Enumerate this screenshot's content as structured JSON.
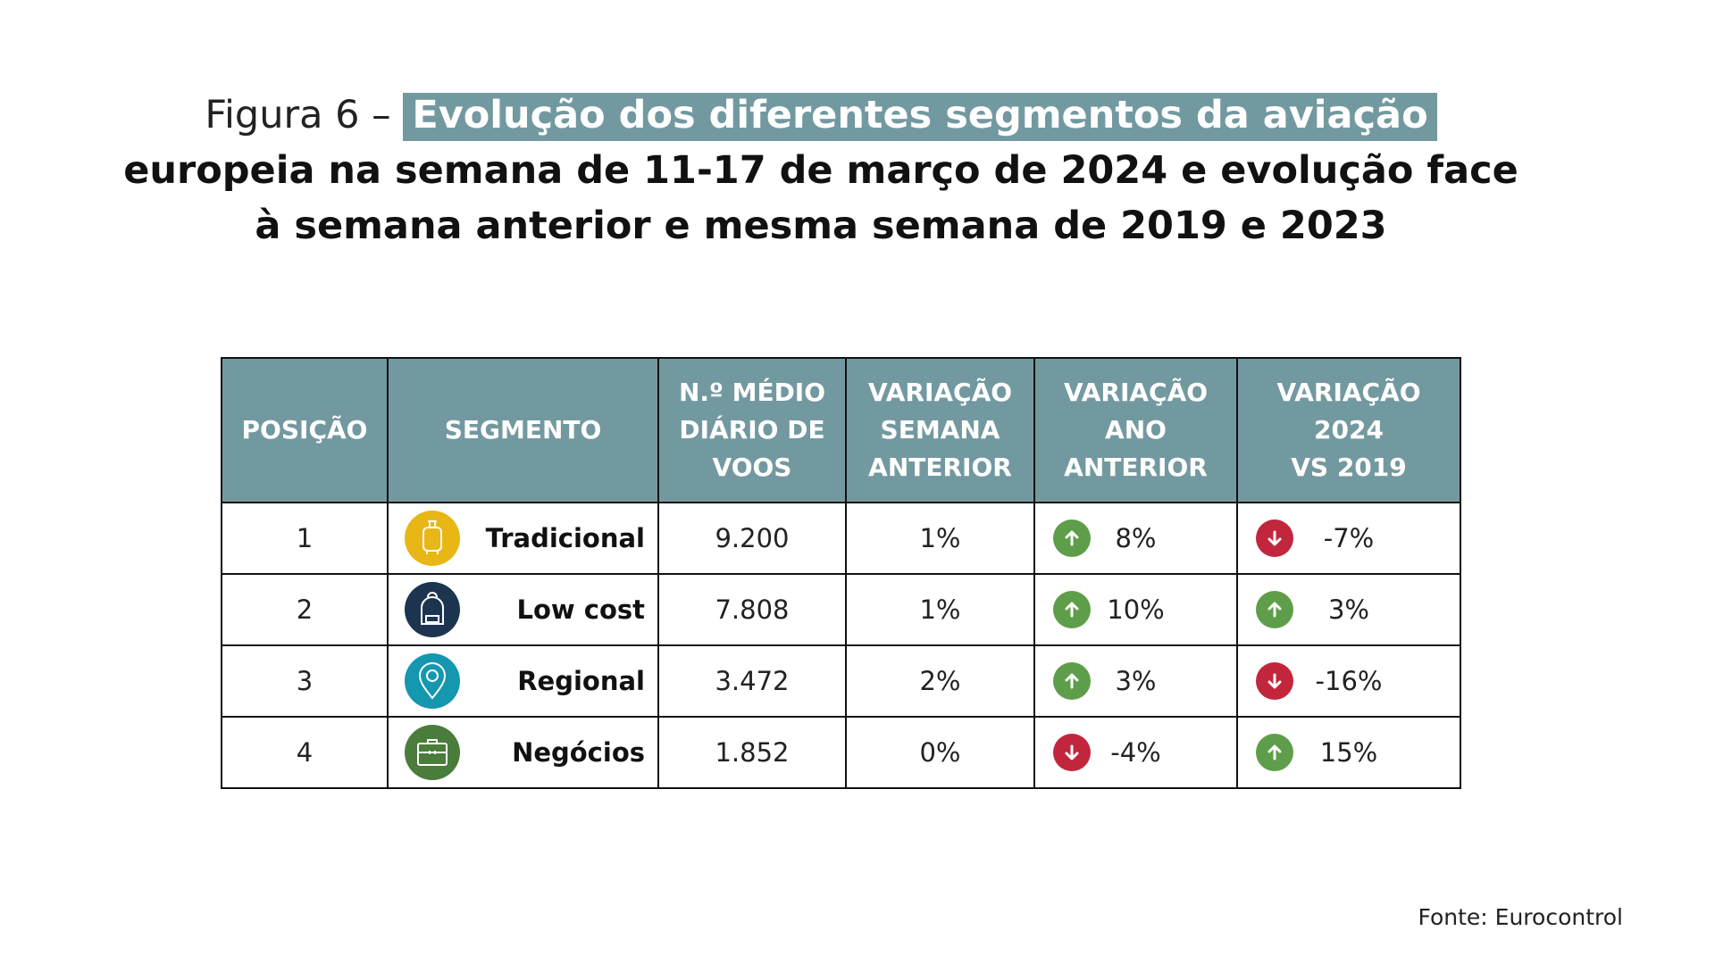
{
  "title": {
    "prefix": "Figura 6 – ",
    "highlight": "Evolução dos diferentes segmentos da aviação",
    "line2": "europeia na semana de 11-17 de março de 2024 e evolução face",
    "line3": "à semana anterior e mesma semana de 2019 e 2023"
  },
  "colors": {
    "header_bg": "#7399a0",
    "up": "#5e9e4a",
    "down": "#c2263d"
  },
  "chart_data": {
    "type": "table",
    "columns": [
      "POSIÇÃO",
      "SEGMENTO",
      "N.º MÉDIO\nDIÁRIO DE\nVOOS",
      "VARIAÇÃO\nSEMANA\nANTERIOR",
      "VARIAÇÃO\nANO\nANTERIOR",
      "VARIAÇÃO\n2024\nVS 2019"
    ],
    "rows": [
      {
        "posicao": "1",
        "segmento": "Tradicional",
        "icon": "suitcase-icon",
        "icon_color": "#e8b716",
        "voos": "9.200",
        "var_semana": "1%",
        "var_ano": "8%",
        "var_ano_dir": "up",
        "var_2019": "-7%",
        "var_2019_dir": "down"
      },
      {
        "posicao": "2",
        "segmento": "Low cost",
        "icon": "backpack-icon",
        "icon_color": "#1d3450",
        "voos": "7.808",
        "var_semana": "1%",
        "var_ano": "10%",
        "var_ano_dir": "up",
        "var_2019": "3%",
        "var_2019_dir": "up"
      },
      {
        "posicao": "3",
        "segmento": "Regional",
        "icon": "map-pin-icon",
        "icon_color": "#1597b0",
        "voos": "3.472",
        "var_semana": "2%",
        "var_ano": "3%",
        "var_ano_dir": "up",
        "var_2019": "-16%",
        "var_2019_dir": "down"
      },
      {
        "posicao": "4",
        "segmento": "Negócios",
        "icon": "briefcase-icon",
        "icon_color": "#4a7c3c",
        "voos": "1.852",
        "var_semana": "0%",
        "var_ano": "-4%",
        "var_ano_dir": "down",
        "var_2019": "15%",
        "var_2019_dir": "up"
      }
    ]
  },
  "source": "Fonte: Eurocontrol"
}
